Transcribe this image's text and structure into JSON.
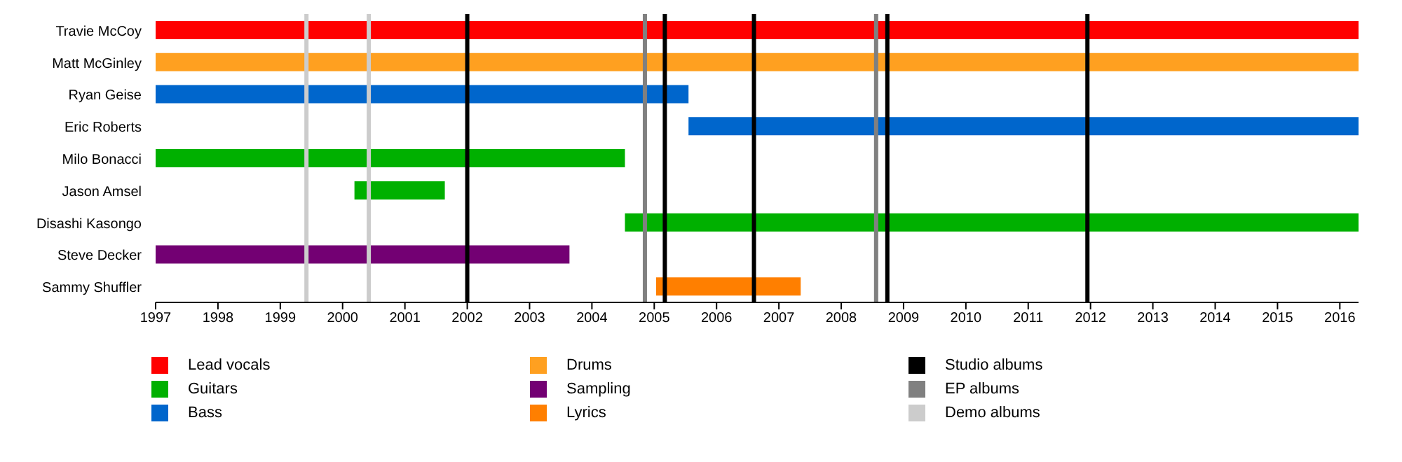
{
  "chart_data": {
    "type": "bar",
    "orientation": "horizontal",
    "categories": [
      "Travie McCoy",
      "Matt McGinley",
      "Ryan Geise",
      "Eric Roberts",
      "Milo Bonacci",
      "Jason Amsel",
      "Disashi Kasongo",
      "Steve Decker",
      "Sammy Shuffler"
    ],
    "series": [
      {
        "name": "Lead vocals",
        "color": "#ff0000",
        "base": [
          1997,
          null,
          null,
          null,
          null,
          null,
          null,
          null,
          null
        ],
        "values": [
          19.3,
          null,
          null,
          null,
          null,
          null,
          null,
          null,
          null
        ]
      },
      {
        "name": "Guitars",
        "color": "#00b000",
        "base": [
          null,
          null,
          null,
          null,
          1997,
          2000.19,
          2004.53,
          null,
          null
        ],
        "values": [
          null,
          null,
          null,
          null,
          7.53,
          1.45,
          11.77,
          null,
          null
        ]
      },
      {
        "name": "Bass",
        "color": "#0066cc",
        "base": [
          null,
          null,
          1997,
          2005.55,
          null,
          null,
          null,
          null,
          null
        ],
        "values": [
          null,
          null,
          8.55,
          10.75,
          null,
          null,
          null,
          null,
          null
        ]
      },
      {
        "name": "Drums",
        "color": "#ffa020",
        "base": [
          null,
          1997,
          null,
          null,
          null,
          null,
          null,
          null,
          null
        ],
        "values": [
          null,
          19.3,
          null,
          null,
          null,
          null,
          null,
          null,
          null
        ]
      },
      {
        "name": "Sampling",
        "color": "#730073",
        "base": [
          null,
          null,
          null,
          null,
          null,
          null,
          null,
          1997,
          null
        ],
        "values": [
          null,
          null,
          null,
          null,
          null,
          null,
          null,
          6.64,
          null
        ]
      },
      {
        "name": "Lyrics",
        "color": "#ff7f00",
        "base": [
          null,
          null,
          null,
          null,
          null,
          null,
          null,
          null,
          2005.03
        ],
        "values": [
          null,
          null,
          null,
          null,
          null,
          null,
          null,
          null,
          2.32
        ]
      }
    ],
    "ref_lines": [
      {
        "axis": "x",
        "value": 2002.0,
        "label": "Studio albums",
        "color": "#000000"
      },
      {
        "axis": "x",
        "value": 2005.17,
        "label": null,
        "color": "#000000"
      },
      {
        "axis": "x",
        "value": 2006.6,
        "label": null,
        "color": "#000000"
      },
      {
        "axis": "x",
        "value": 2008.74,
        "label": null,
        "color": "#000000"
      },
      {
        "axis": "x",
        "value": 2011.95,
        "label": null,
        "color": "#000000"
      },
      {
        "axis": "x",
        "value": 2004.85,
        "label": "EP albums",
        "color": "#808080"
      },
      {
        "axis": "x",
        "value": 2008.56,
        "label": null,
        "color": "#808080"
      },
      {
        "axis": "x",
        "value": 1999.42,
        "label": "Demo albums",
        "color": "#cccccc"
      },
      {
        "axis": "x",
        "value": 2000.42,
        "label": null,
        "color": "#cccccc"
      }
    ],
    "xlim": [
      1997,
      2016.3
    ],
    "xticks": [
      1997,
      1998,
      1999,
      2000,
      2001,
      2002,
      2003,
      2004,
      2005,
      2006,
      2007,
      2008,
      2009,
      2010,
      2011,
      2012,
      2013,
      2014,
      2015,
      2016
    ],
    "legend": "bottom",
    "grid": false
  }
}
